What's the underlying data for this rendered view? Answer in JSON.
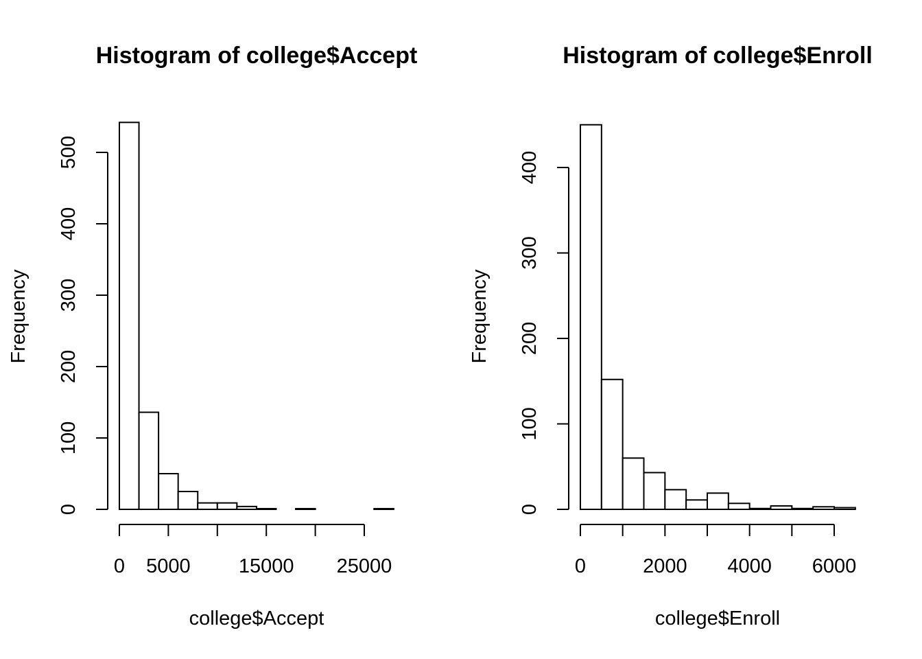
{
  "chart_data": [
    {
      "type": "bar",
      "title": "Histogram of college$Accept",
      "xlabel": "college$Accept",
      "ylabel": "Frequency",
      "bins": [
        {
          "start": 0,
          "end": 2000,
          "count": 542
        },
        {
          "start": 2000,
          "end": 4000,
          "count": 136
        },
        {
          "start": 4000,
          "end": 6000,
          "count": 50
        },
        {
          "start": 6000,
          "end": 8000,
          "count": 25
        },
        {
          "start": 8000,
          "end": 10000,
          "count": 9
        },
        {
          "start": 10000,
          "end": 12000,
          "count": 9
        },
        {
          "start": 12000,
          "end": 14000,
          "count": 4
        },
        {
          "start": 14000,
          "end": 16000,
          "count": 1
        },
        {
          "start": 16000,
          "end": 18000,
          "count": 0
        },
        {
          "start": 18000,
          "end": 20000,
          "count": 1
        },
        {
          "start": 20000,
          "end": 22000,
          "count": 0
        },
        {
          "start": 22000,
          "end": 24000,
          "count": 0
        },
        {
          "start": 24000,
          "end": 26000,
          "count": 0
        },
        {
          "start": 26000,
          "end": 28000,
          "count": 1
        }
      ],
      "xticks": [
        0,
        5000,
        10000,
        15000,
        20000,
        25000
      ],
      "xtick_labels": [
        "0",
        "5000",
        "",
        "15000",
        "",
        "25000"
      ],
      "yticks": [
        0,
        100,
        200,
        300,
        400,
        500
      ],
      "ytick_labels": [
        "0",
        "100",
        "200",
        "300",
        "400",
        "500"
      ],
      "xlim": [
        0,
        28000
      ],
      "ylim": [
        0,
        542
      ]
    },
    {
      "type": "bar",
      "title": "Histogram of college$Enroll",
      "xlabel": "college$Enroll",
      "ylabel": "Frequency",
      "bins": [
        {
          "start": 0,
          "end": 500,
          "count": 450
        },
        {
          "start": 500,
          "end": 1000,
          "count": 152
        },
        {
          "start": 1000,
          "end": 1500,
          "count": 60
        },
        {
          "start": 1500,
          "end": 2000,
          "count": 43
        },
        {
          "start": 2000,
          "end": 2500,
          "count": 23
        },
        {
          "start": 2500,
          "end": 3000,
          "count": 11
        },
        {
          "start": 3000,
          "end": 3500,
          "count": 19
        },
        {
          "start": 3500,
          "end": 4000,
          "count": 7
        },
        {
          "start": 4000,
          "end": 4500,
          "count": 1
        },
        {
          "start": 4500,
          "end": 5000,
          "count": 4
        },
        {
          "start": 5000,
          "end": 5500,
          "count": 1
        },
        {
          "start": 5500,
          "end": 6000,
          "count": 3
        },
        {
          "start": 6000,
          "end": 6500,
          "count": 2
        }
      ],
      "xticks": [
        0,
        1000,
        2000,
        3000,
        4000,
        5000,
        6000
      ],
      "xtick_labels": [
        "0",
        "",
        "2000",
        "",
        "4000",
        "",
        "6000"
      ],
      "yticks": [
        0,
        100,
        200,
        300,
        400
      ],
      "ytick_labels": [
        "0",
        "100",
        "200",
        "300",
        "400"
      ],
      "xlim": [
        0,
        6500
      ],
      "ylim": [
        0,
        450
      ]
    }
  ]
}
